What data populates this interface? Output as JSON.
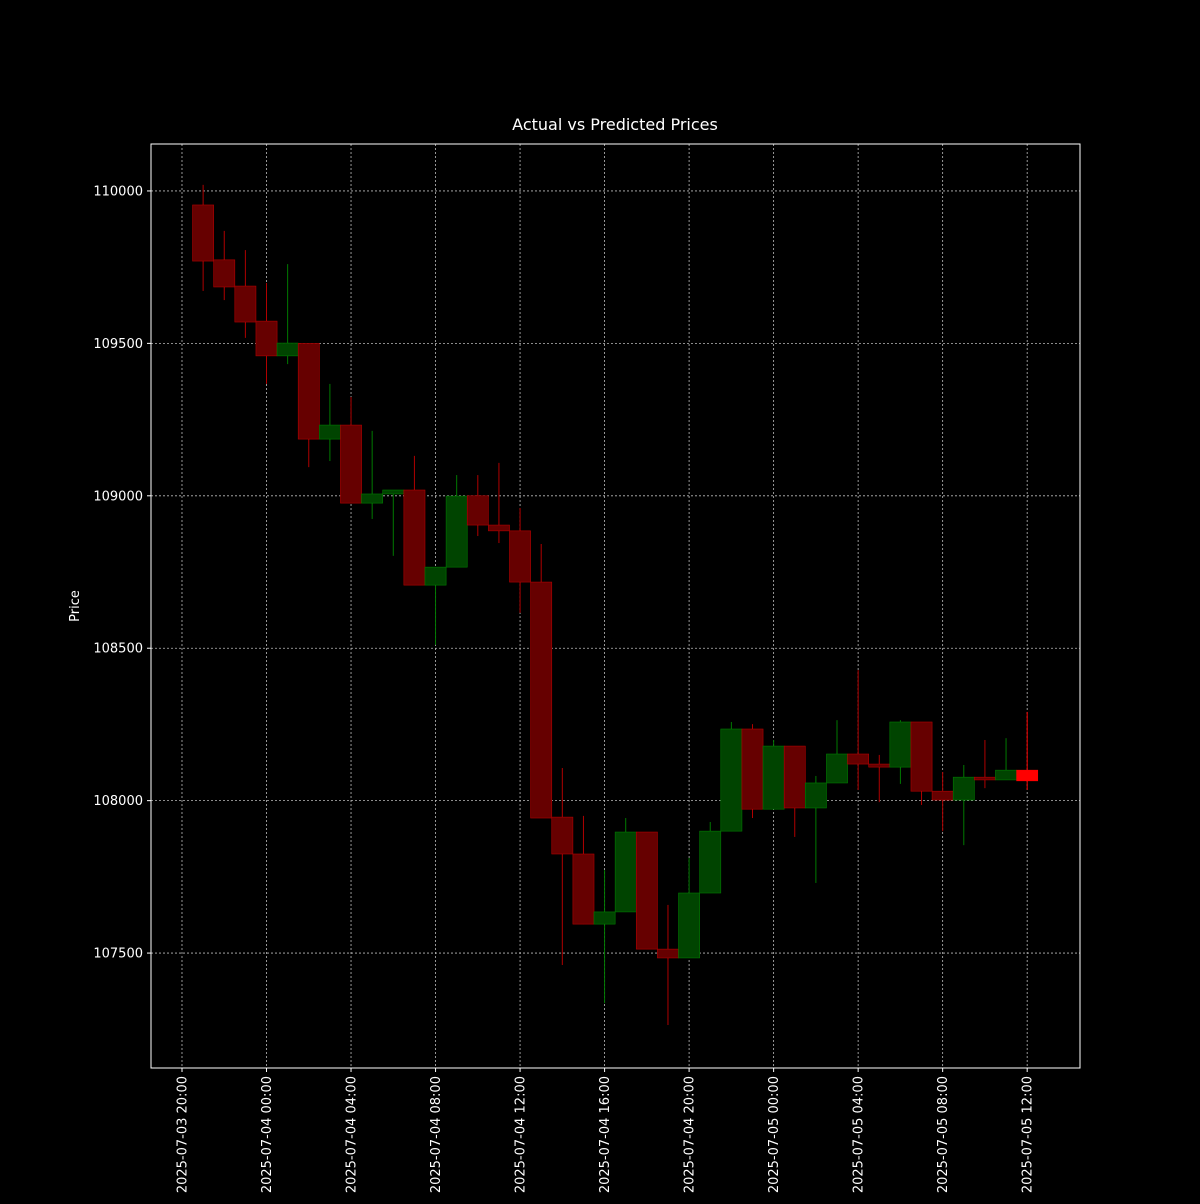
{
  "chart_data": {
    "type": "candlestick",
    "title": "Actual vs Predicted Prices",
    "y_label": "Price",
    "grid": true,
    "ylim": [
      107123,
      110154
    ],
    "yticks": [
      107500,
      108000,
      108500,
      109000,
      109500,
      110000
    ],
    "xlim": [
      "2025-07-03 18:32",
      "2025-07-05 14:30"
    ],
    "xticks": [
      "2025-07-03 20:00",
      "2025-07-04 00:00",
      "2025-07-04 04:00",
      "2025-07-04 08:00",
      "2025-07-04 12:00",
      "2025-07-04 16:00",
      "2025-07-04 20:00",
      "2025-07-05 00:00",
      "2025-07-05 04:00",
      "2025-07-05 08:00",
      "2025-07-05 12:00"
    ],
    "series": [
      {
        "up_color": "#004400",
        "down_color": "#660000",
        "x": [
          "2025-07-03 21:00",
          "2025-07-03 22:00",
          "2025-07-03 23:00",
          "2025-07-04 00:00",
          "2025-07-04 01:00",
          "2025-07-04 02:00",
          "2025-07-04 03:00",
          "2025-07-04 04:00",
          "2025-07-04 05:00",
          "2025-07-04 06:00",
          "2025-07-04 07:00",
          "2025-07-04 08:00",
          "2025-07-04 09:00",
          "2025-07-04 10:00",
          "2025-07-04 11:00",
          "2025-07-04 12:00",
          "2025-07-04 13:00",
          "2025-07-04 14:00",
          "2025-07-04 15:00",
          "2025-07-04 16:00",
          "2025-07-04 17:00",
          "2025-07-04 18:00",
          "2025-07-04 19:00",
          "2025-07-04 20:00",
          "2025-07-04 21:00",
          "2025-07-04 22:00",
          "2025-07-04 23:00",
          "2025-07-05 00:00",
          "2025-07-05 01:00",
          "2025-07-05 02:00",
          "2025-07-05 03:00",
          "2025-07-05 04:00",
          "2025-07-05 05:00",
          "2025-07-05 06:00",
          "2025-07-05 07:00",
          "2025-07-05 08:00",
          "2025-07-05 09:00",
          "2025-07-05 10:00",
          "2025-07-05 11:00"
        ],
        "open": [
          109954,
          109774,
          109688,
          109573,
          109459,
          109500,
          109186,
          109232,
          108976,
          109006,
          109019,
          108707,
          108766,
          109000,
          108904,
          108885,
          108717,
          107946,
          107825,
          107595,
          107635,
          107897,
          107513,
          107484,
          107697,
          107900,
          108235,
          107972,
          108179,
          107976,
          108058,
          108153,
          108120,
          108110,
          108258,
          108031,
          108002,
          108077,
          108068
        ],
        "high": [
          110020,
          109869,
          109806,
          109698,
          109760,
          109500,
          109367,
          109324,
          109213,
          109019,
          109131,
          108766,
          109068,
          109068,
          109108,
          108960,
          108842,
          108107,
          107950,
          107772,
          107943,
          107897,
          107658,
          107812,
          107930,
          108258,
          108251,
          108199,
          108179,
          108081,
          108264,
          108428,
          108150,
          108264,
          108258,
          108094,
          108117,
          108199,
          108205
        ],
        "low": [
          109672,
          109642,
          109518,
          109367,
          109432,
          109094,
          109114,
          108976,
          108924,
          108803,
          108707,
          108511,
          108766,
          108868,
          108845,
          108616,
          107943,
          107461,
          107595,
          107336,
          107635,
          107513,
          107264,
          107484,
          107697,
          107900,
          107943,
          107972,
          107881,
          107730,
          108058,
          108035,
          107995,
          108055,
          107986,
          107900,
          107854,
          108041,
          108068
        ],
        "close": [
          109770,
          109685,
          109570,
          109459,
          109501,
          109186,
          109232,
          108976,
          109006,
          109019,
          108707,
          108766,
          108999,
          108904,
          108885,
          108717,
          107943,
          107825,
          107595,
          107635,
          107897,
          107513,
          107484,
          107697,
          107900,
          108235,
          107972,
          108179,
          107976,
          108058,
          108153,
          108120,
          108110,
          108258,
          108031,
          108002,
          108077,
          108068,
          108100
        ]
      },
      {
        "color": "#ff0000",
        "x": [
          "2025-07-05 12:00"
        ],
        "open": [
          108100
        ],
        "high": [
          108291
        ],
        "low": [
          108035
        ],
        "close": [
          108065
        ]
      }
    ]
  }
}
